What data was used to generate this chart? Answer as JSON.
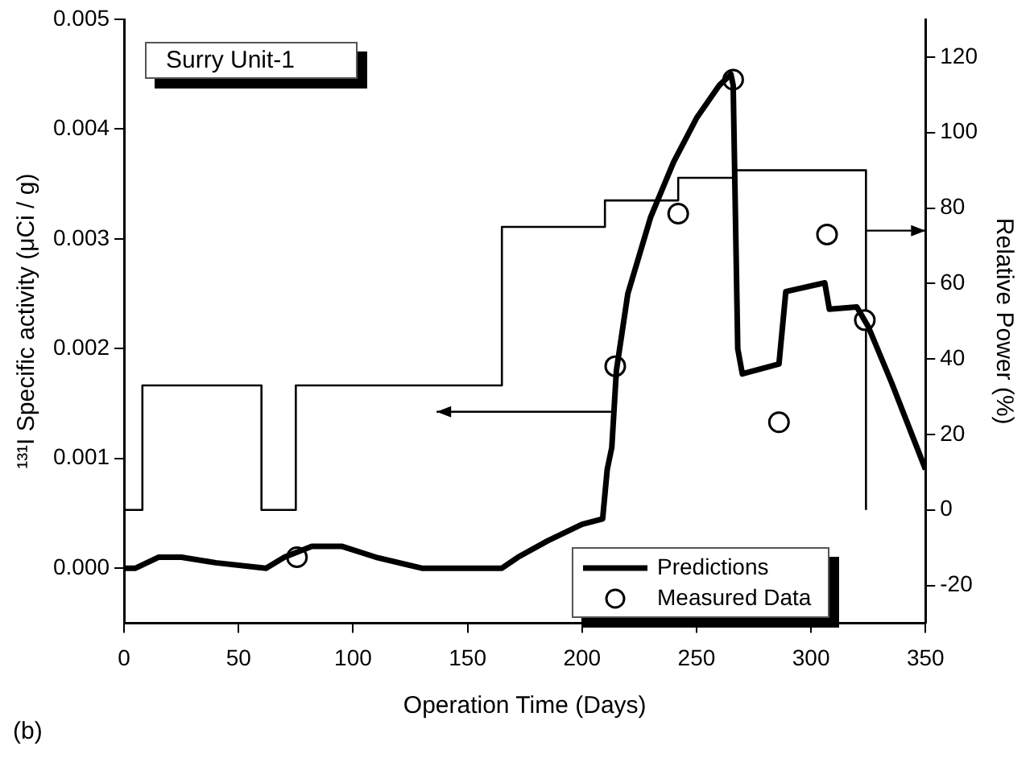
{
  "chart_data": {
    "type": "line",
    "xlabel": "Operation Time (Days)",
    "ylabel": "¹³¹I Specific activity (μCi / g)",
    "y2label": "Relative Power (%)",
    "annotations": [
      "Surry Unit-1",
      "(b)"
    ],
    "xlim": [
      0,
      350
    ],
    "xticks": [
      0,
      50,
      100,
      150,
      200,
      250,
      300,
      350
    ],
    "ylim": [
      -0.0005,
      0.005
    ],
    "yticks": [
      {
        "value": 0,
        "label": "0.000"
      },
      {
        "value": 0.001,
        "label": "0.001"
      },
      {
        "value": 0.002,
        "label": "0.002"
      },
      {
        "value": 0.003,
        "label": "0.003"
      },
      {
        "value": 0.004,
        "label": "0.004"
      },
      {
        "value": 0.005,
        "label": "0.005"
      }
    ],
    "y2lim": [
      -30,
      130
    ],
    "y2ticks": [
      -20,
      0,
      20,
      40,
      60,
      80,
      100,
      120
    ],
    "grid": false,
    "legend": "bottom right",
    "series": [
      {
        "name": "Predictions",
        "type": "line",
        "marker": "none",
        "line_style": "solid",
        "color": "#000000",
        "x": [
          0,
          5,
          15,
          25,
          40,
          62,
          70,
          82,
          95,
          110,
          130,
          150,
          165,
          172,
          185,
          200,
          209,
          211,
          213,
          215,
          220,
          230,
          240,
          250,
          260,
          265,
          266,
          268,
          270,
          286,
          289,
          306,
          308,
          320,
          325,
          335,
          350
        ],
        "values": [
          0,
          0,
          0.0001,
          0.0001,
          5e-05,
          0,
          0.0001,
          0.0002,
          0.0002,
          0.0001,
          0,
          0,
          0,
          0.0001,
          0.00025,
          0.0004,
          0.00045,
          0.0009,
          0.0011,
          0.0018,
          0.0025,
          0.0032,
          0.0037,
          0.0041,
          0.0044,
          0.0045,
          0.0044,
          0.002,
          0.00177,
          0.00186,
          0.00252,
          0.0026,
          0.00236,
          0.00238,
          0.0022,
          0.0017,
          0.0009
        ]
      },
      {
        "name": "Measured Data",
        "type": "scatter",
        "marker": "circle",
        "color": "#000000",
        "x": [
          75.5,
          214.5,
          242,
          266,
          286,
          307,
          323.5
        ],
        "values": [
          0.0001,
          0.00184,
          0.00323,
          0.00445,
          0.00133,
          0.00304,
          0.00226
        ]
      },
      {
        "type": "step",
        "axis": "y2",
        "line_style": "solid",
        "color": "#000000",
        "x": [
          0,
          8,
          60,
          75,
          165,
          210,
          242,
          266,
          286,
          324,
          324
        ],
        "values": [
          24,
          0,
          33,
          0,
          33,
          75,
          82,
          88,
          90,
          90,
          0
        ]
      }
    ]
  }
}
